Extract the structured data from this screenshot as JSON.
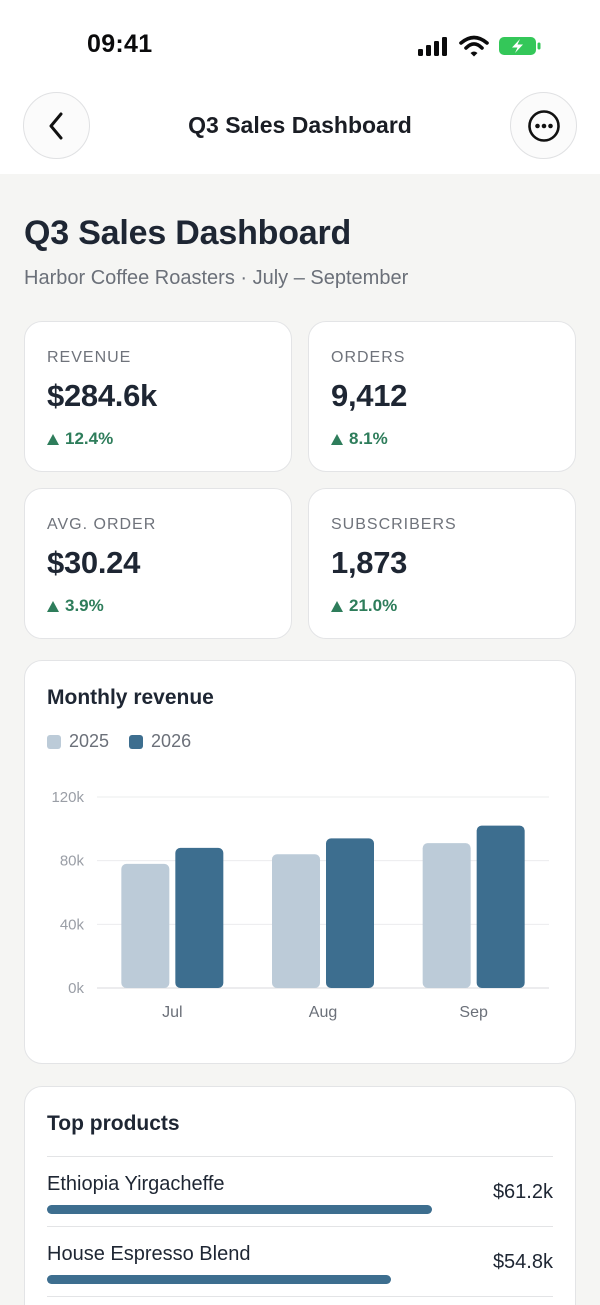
{
  "status": {
    "time": "09:41"
  },
  "nav": {
    "title": "Q3 Sales Dashboard"
  },
  "header": {
    "title": "Q3 Sales Dashboard",
    "subtitle": "Harbor Coffee Roasters · July – September"
  },
  "kpis": [
    {
      "label": "REVENUE",
      "value": "$284.6k",
      "delta": "12.4%"
    },
    {
      "label": "ORDERS",
      "value": "9,412",
      "delta": "8.1%"
    },
    {
      "label": "AVG. ORDER",
      "value": "$30.24",
      "delta": "3.9%"
    },
    {
      "label": "SUBSCRIBERS",
      "value": "1,873",
      "delta": "21.0%"
    }
  ],
  "colors": {
    "accent": "#3d6e8f",
    "light": "#bccbd8",
    "positive": "#2e7d5b"
  },
  "chart_data": {
    "type": "bar",
    "title": "Monthly revenue",
    "categories": [
      "Jul",
      "Aug",
      "Sep"
    ],
    "series": [
      {
        "name": "2025",
        "values": [
          78000,
          84000,
          91000
        ],
        "color": "#bccbd8"
      },
      {
        "name": "2026",
        "values": [
          88000,
          94000,
          102000
        ],
        "color": "#3d6e8f"
      }
    ],
    "yticks": [
      "0k",
      "40k",
      "80k",
      "120k"
    ],
    "ylim": [
      0,
      120000
    ],
    "grid": true,
    "legend": "top-left"
  },
  "products": {
    "title": "Top products",
    "items": [
      {
        "name": "Ethiopia Yirgacheffe",
        "value": "$61.2k",
        "share": 0.757
      },
      {
        "name": "House Espresso Blend",
        "value": "$54.8k",
        "share": 0.678
      }
    ]
  }
}
